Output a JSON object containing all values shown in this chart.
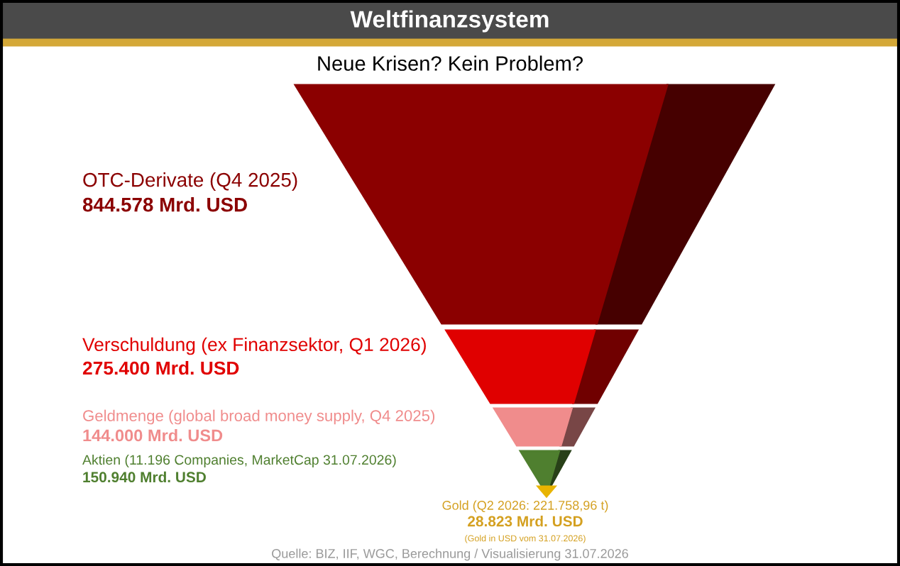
{
  "chart_data": {
    "type": "other",
    "title": "Weltfinanzsystem",
    "subtitle": "Neue Krisen? Kein Problem?",
    "categories": [
      "OTC-Derivate (Q4 2025)",
      "Verschuldung (ex Finanzsektor, Q1 2026)",
      "Geldmenge (global broad money supply, Q4 2025)",
      "Aktien (11.196 Companies, MarketCap 31.07.2026)",
      "Gold (Q2 2026: 221.758,96 t)"
    ],
    "values": [
      844578,
      275400,
      144000,
      150940,
      28823
    ],
    "value_labels": [
      "844.578 Mrd. USD",
      "275.400 Mrd. USD",
      "144.000 Mrd. USD",
      "150.940 Mrd. USD",
      "28.823 Mrd. USD"
    ],
    "colors": [
      "#8b0000",
      "#e00000",
      "#f08c8c",
      "#4f7f2f",
      "#e8b400"
    ],
    "annotations": [
      "(Gold in USD vom 31.07.2026)",
      "Quelle: BIZ, IIF, WGC, Berechnung / Visualisierung 31.07.2026"
    ]
  }
}
